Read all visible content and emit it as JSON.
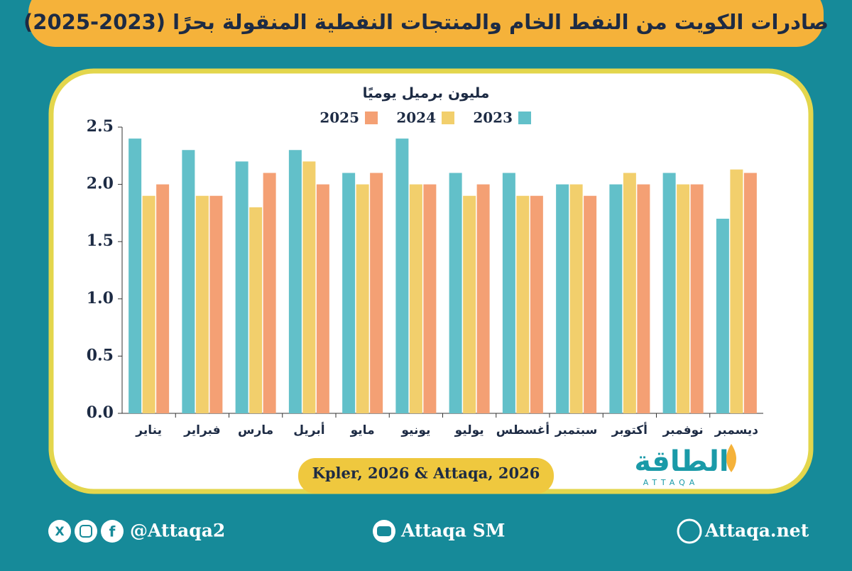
{
  "chart_data": {
    "type": "bar",
    "title": "صادرات الكويت من النفط الخام والمنتجات النفطية المنقولة بحرًا (2023-2025)",
    "y_label": "مليون برميل يوميًا",
    "categories": [
      "يناير",
      "فبراير",
      "مارس",
      "أبريل",
      "مايو",
      "يونيو",
      "يوليو",
      "أغسطس",
      "سبتمبر",
      "أكتوبر",
      "نوفمبر",
      "ديسمبر"
    ],
    "series": [
      {
        "name": "2023",
        "color": "#62c0c9",
        "values": [
          2.4,
          2.3,
          2.2,
          2.3,
          2.1,
          2.4,
          2.1,
          2.1,
          2.0,
          2.0,
          2.1,
          1.7
        ]
      },
      {
        "name": "2024",
        "color": "#f2cf6c",
        "values": [
          1.9,
          1.9,
          1.8,
          2.2,
          2.0,
          2.0,
          1.9,
          1.9,
          2.0,
          2.1,
          2.0,
          2.13
        ]
      },
      {
        "name": "2025",
        "color": "#f4a074",
        "values": [
          2.0,
          1.9,
          2.1,
          2.0,
          2.1,
          2.0,
          2.0,
          1.9,
          1.9,
          2.0,
          2.0,
          2.1
        ]
      }
    ],
    "ylim": [
      0,
      2.5
    ],
    "yticks": [
      {
        "value": 0,
        "label": "0.0"
      },
      0.5,
      {
        "value": 1,
        "label": "1.0"
      },
      1.5,
      {
        "value": 2,
        "label": "2.0"
      },
      2.5
    ],
    "source": "Kpler, 2026 & Attaqa, 2026"
  },
  "logo": {
    "name": "الطاقة",
    "latin": "ATTAQA"
  },
  "footer": {
    "social": "@Attaqa2",
    "youtube": "Attaqa SM",
    "website": "Attaqa.net"
  }
}
